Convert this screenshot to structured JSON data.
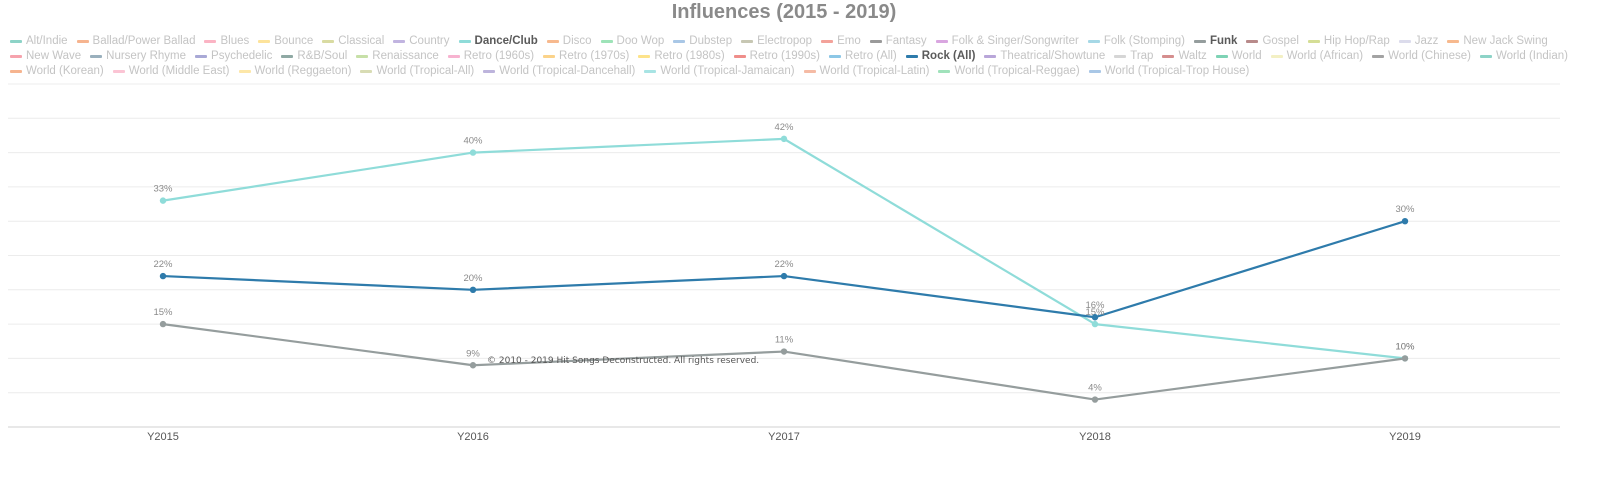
{
  "chart_data": {
    "type": "line",
    "title": "Influences (2015 - 2019)",
    "categories": [
      "Y2015",
      "Y2016",
      "Y2017",
      "Y2018",
      "Y2019"
    ],
    "ylim": [
      0,
      50
    ],
    "grid": true,
    "legend_position": "top",
    "legend": [
      {
        "name": "Alt/Indie",
        "color": "#8dd3c7",
        "active": false
      },
      {
        "name": "Ballad/Power Ballad",
        "color": "#f6b48f",
        "active": false
      },
      {
        "name": "Blues",
        "color": "#fbb4c4",
        "active": false
      },
      {
        "name": "Bounce",
        "color": "#fde39b",
        "active": false
      },
      {
        "name": "Classical",
        "color": "#d9dba2",
        "active": false
      },
      {
        "name": "Country",
        "color": "#c1b4e0",
        "active": false
      },
      {
        "name": "Dance/Club",
        "color": "#8fdcd9",
        "active": true
      },
      {
        "name": "Disco",
        "color": "#f7b98e",
        "active": false
      },
      {
        "name": "Doo Wop",
        "color": "#9ee3b8",
        "active": false
      },
      {
        "name": "Dubstep",
        "color": "#a9c7e6",
        "active": false
      },
      {
        "name": "Electropop",
        "color": "#c7c7b3",
        "active": false
      },
      {
        "name": "Emo",
        "color": "#f3a29a",
        "active": false
      },
      {
        "name": "Fantasy",
        "color": "#9a9a9a",
        "active": false
      },
      {
        "name": "Folk & Singer/Songwriter",
        "color": "#d9a6e0",
        "active": false
      },
      {
        "name": "Folk (Stomping)",
        "color": "#a6d8e6",
        "active": false
      },
      {
        "name": "Funk",
        "color": "#959d9d",
        "active": true
      },
      {
        "name": "Gospel",
        "color": "#b88a8a",
        "active": false
      },
      {
        "name": "Hip Hop/Rap",
        "color": "#d5de96",
        "active": false
      },
      {
        "name": "Jazz",
        "color": "#dcdcec",
        "active": false
      },
      {
        "name": "New Jack Swing",
        "color": "#f7b98e",
        "active": false
      },
      {
        "name": "New Wave",
        "color": "#f6a3ad",
        "active": false
      },
      {
        "name": "Nursery Rhyme",
        "color": "#9ab0bd",
        "active": false
      },
      {
        "name": "Psychedelic",
        "color": "#a9a9d6",
        "active": false
      },
      {
        "name": "R&B/Soul",
        "color": "#8fa9a4",
        "active": false
      },
      {
        "name": "Renaissance",
        "color": "#c7e0a8",
        "active": false
      },
      {
        "name": "Retro (1960s)",
        "color": "#f7b3d0",
        "active": false
      },
      {
        "name": "Retro (1970s)",
        "color": "#fbd38a",
        "active": false
      },
      {
        "name": "Retro (1980s)",
        "color": "#fde38a",
        "active": false
      },
      {
        "name": "Retro (1990s)",
        "color": "#ef8e8a",
        "active": false
      },
      {
        "name": "Retro (All)",
        "color": "#8cc7e6",
        "active": false
      },
      {
        "name": "Rock (All)",
        "color": "#2e7bab",
        "active": true
      },
      {
        "name": "Theatrical/Showtune",
        "color": "#b9a6d9",
        "active": false
      },
      {
        "name": "Trap",
        "color": "#d6d6d6",
        "active": false
      },
      {
        "name": "Waltz",
        "color": "#d58e8e",
        "active": false
      },
      {
        "name": "World",
        "color": "#7ed3b5",
        "active": false
      },
      {
        "name": "World (African)",
        "color": "#f3f0c4",
        "active": false
      },
      {
        "name": "World (Chinese)",
        "color": "#a3a3a3",
        "active": false
      },
      {
        "name": "World (Indian)",
        "color": "#8dd3c7",
        "active": false
      },
      {
        "name": "World (Korean)",
        "color": "#f6b48f",
        "active": false
      },
      {
        "name": "World (Middle East)",
        "color": "#fbc4d4",
        "active": false
      },
      {
        "name": "World (Reggaeton)",
        "color": "#fde7a8",
        "active": false
      },
      {
        "name": "World (Tropical-All)",
        "color": "#d8dcb4",
        "active": false
      },
      {
        "name": "World (Tropical-Dancehall)",
        "color": "#bdb4dc",
        "active": false
      },
      {
        "name": "World (Tropical-Jamaican)",
        "color": "#a8e4e4",
        "active": false
      },
      {
        "name": "World (Tropical-Latin)",
        "color": "#f5bba5",
        "active": false
      },
      {
        "name": "World (Tropical-Reggae)",
        "color": "#a0e2bb",
        "active": false
      },
      {
        "name": "World (Tropical-Trop House)",
        "color": "#a9c7e6",
        "active": false
      }
    ],
    "series": [
      {
        "name": "Dance/Club",
        "color": "#8fdcd9",
        "values": [
          33,
          40,
          42,
          15,
          10
        ],
        "labels": [
          "33%",
          "40%",
          "42%",
          "15%",
          "10%"
        ]
      },
      {
        "name": "Rock (All)",
        "color": "#2e7bab",
        "values": [
          22,
          20,
          22,
          16,
          30
        ],
        "labels": [
          "22%",
          "20%",
          "22%",
          "16%",
          "30%"
        ]
      },
      {
        "name": "Funk",
        "color": "#959d9d",
        "values": [
          15,
          9,
          11,
          4,
          10
        ],
        "labels": [
          "15%",
          "9%",
          "11%",
          "4%",
          "10%"
        ]
      }
    ]
  },
  "copyright": "© 2010 - 2019 Hit Songs Deconstructed. All rights reserved."
}
